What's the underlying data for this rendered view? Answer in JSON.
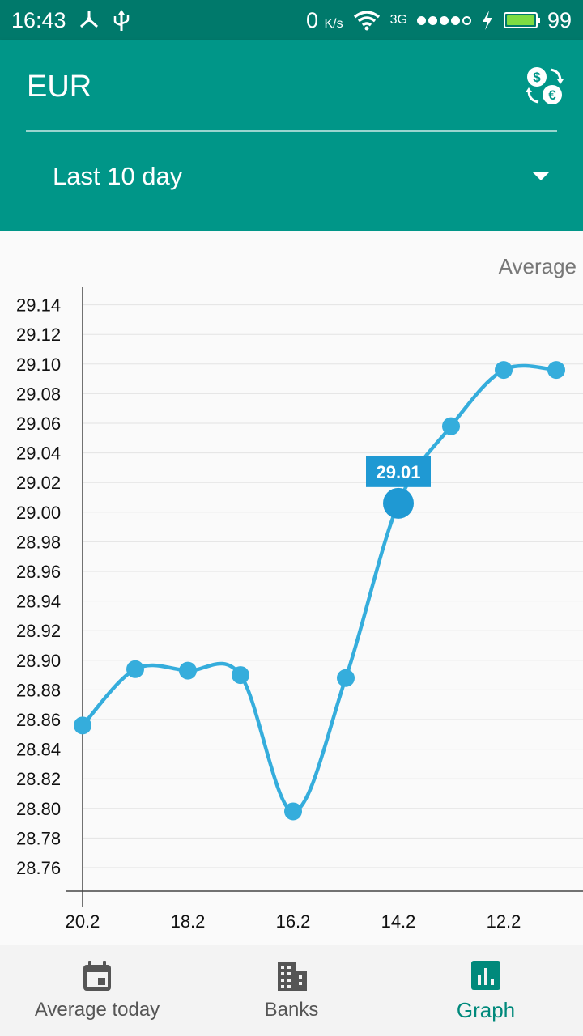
{
  "status_bar": {
    "time": "16:43",
    "net_speed": "0",
    "net_unit": "K/s",
    "network": "3G",
    "battery": "99"
  },
  "header": {
    "currency": "EUR",
    "period": "Last 10 day"
  },
  "chart_data": {
    "type": "line",
    "title": "Average",
    "x_tick_labels": [
      "20.2",
      "18.2",
      "16.2",
      "14.2",
      "12.2"
    ],
    "x": [
      "20.2",
      "19.2",
      "18.2",
      "17.2",
      "16.2",
      "15.2",
      "14.2",
      "13.2",
      "12.2",
      "11.2"
    ],
    "values": [
      28.856,
      28.894,
      28.893,
      28.89,
      28.798,
      28.888,
      29.006,
      29.058,
      29.096,
      29.096
    ],
    "ylim": [
      28.75,
      29.15
    ],
    "y_ticks": [
      "28.76",
      "28.78",
      "28.80",
      "28.82",
      "28.84",
      "28.86",
      "28.88",
      "28.90",
      "28.92",
      "28.94",
      "28.96",
      "28.98",
      "29.00",
      "29.02",
      "29.04",
      "29.06",
      "29.08",
      "29.10",
      "29.12",
      "29.14"
    ],
    "highlight_index": 6,
    "highlight_label": "29.01",
    "grid": true,
    "line_color": "#35addc",
    "highlight_color": "#1f99d3"
  },
  "bottom_nav": {
    "items": [
      {
        "label": "Average today",
        "icon": "calendar-icon"
      },
      {
        "label": "Banks",
        "icon": "bank-building-icon"
      },
      {
        "label": "Graph",
        "icon": "bar-chart-icon"
      }
    ],
    "active_color": "#00897b"
  }
}
